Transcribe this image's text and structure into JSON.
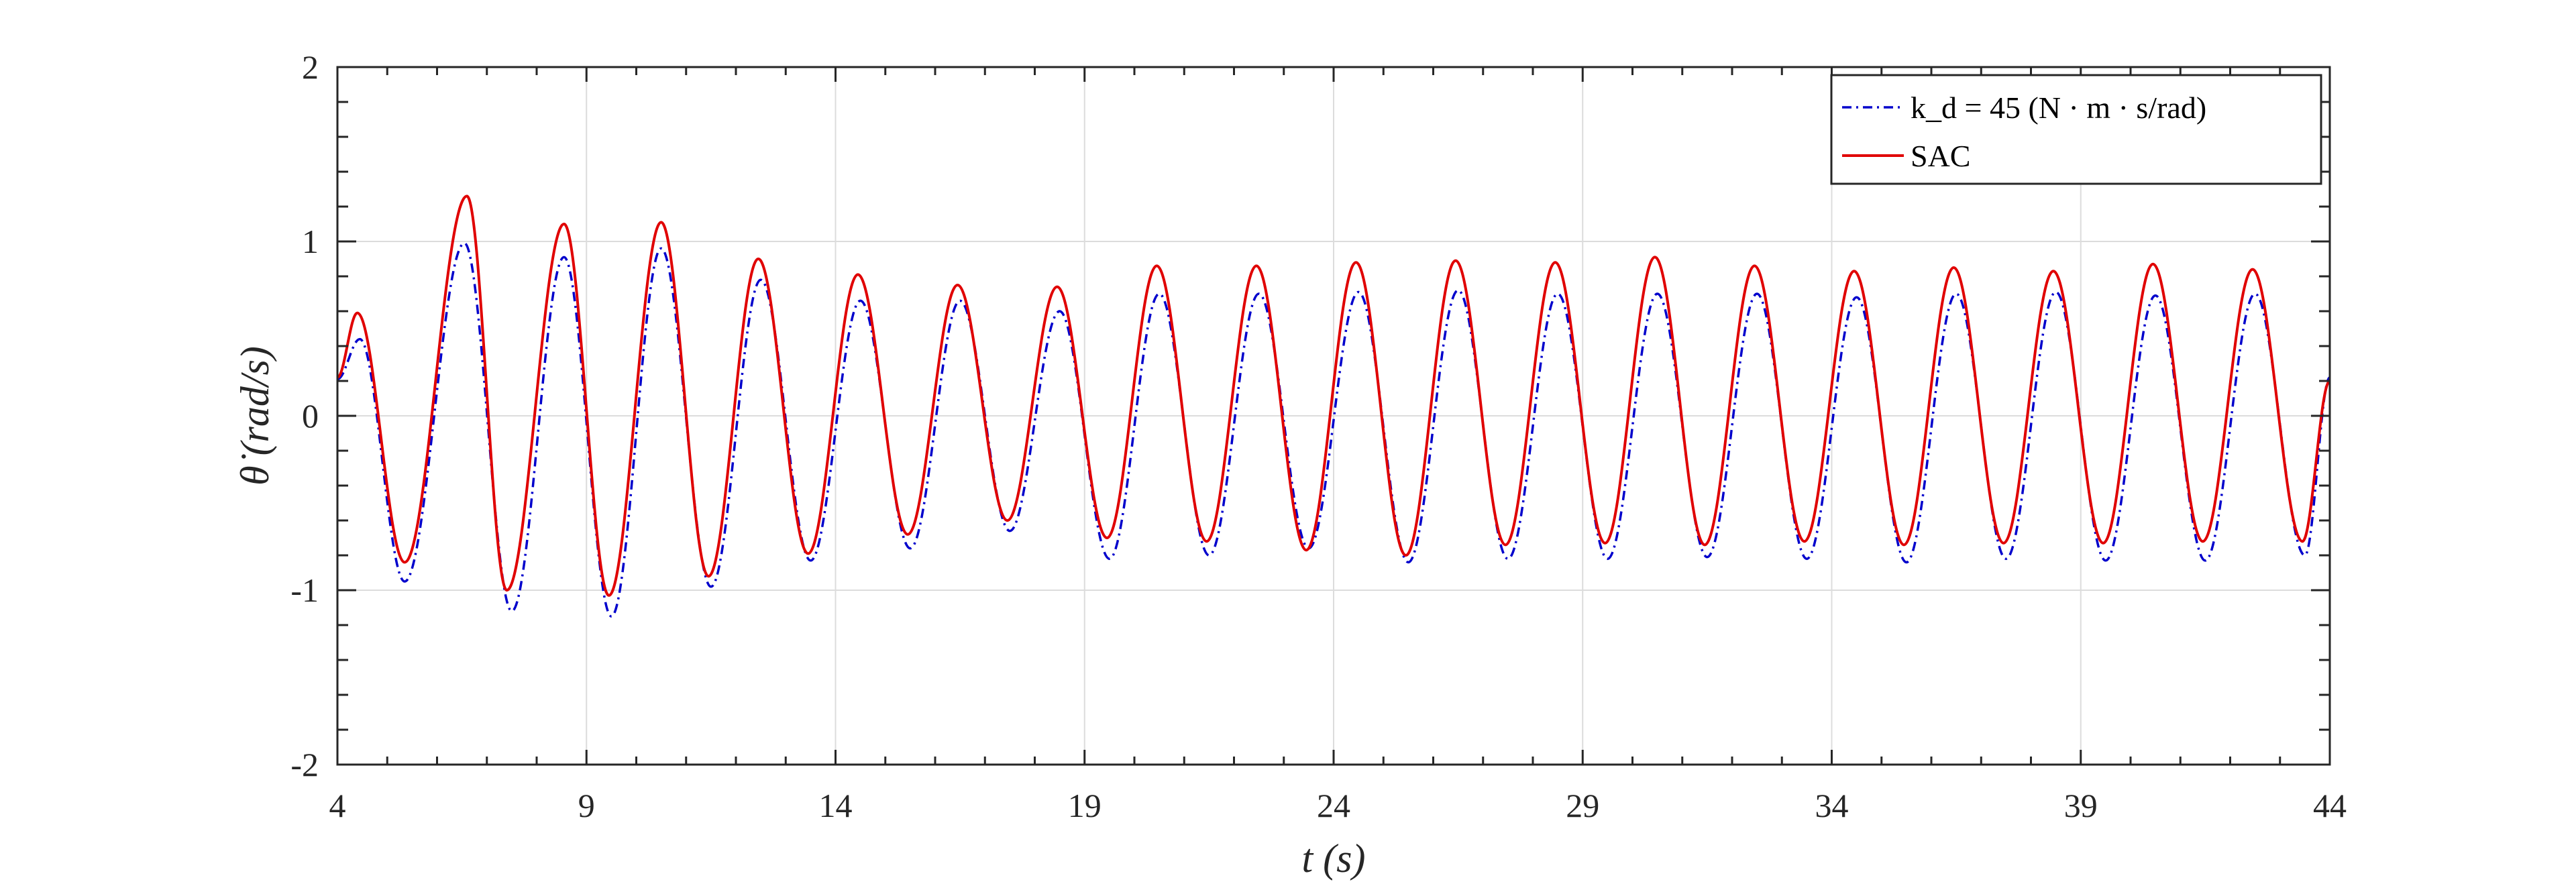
{
  "chart_data": {
    "type": "line",
    "xlabel": "t (s)",
    "ylabel": "θ̇ (rad/s)",
    "xlim": [
      4,
      44
    ],
    "ylim": [
      -2,
      2
    ],
    "xticks": [
      "4",
      "9",
      "14",
      "19",
      "24",
      "29",
      "34",
      "39",
      "44"
    ],
    "yticks": [
      "-2",
      "-1",
      "0",
      "1",
      "2"
    ],
    "grid": true,
    "legend_position": "top-right",
    "series": [
      {
        "name": "k_d = 45 (N · m · s/rad)",
        "color": "#0000cc",
        "style": "dash-dot",
        "peaks": [
          [
            4.45,
            0.44
          ],
          [
            6.55,
            0.99
          ],
          [
            8.55,
            0.91
          ],
          [
            10.5,
            0.96
          ],
          [
            12.5,
            0.78
          ],
          [
            14.5,
            0.66
          ],
          [
            16.5,
            0.66
          ],
          [
            18.5,
            0.6
          ],
          [
            20.5,
            0.7
          ],
          [
            22.5,
            0.7
          ],
          [
            24.5,
            0.71
          ],
          [
            26.5,
            0.72
          ],
          [
            28.5,
            0.7
          ],
          [
            30.5,
            0.7
          ],
          [
            32.5,
            0.7
          ],
          [
            34.5,
            0.68
          ],
          [
            36.5,
            0.7
          ],
          [
            38.5,
            0.71
          ],
          [
            40.5,
            0.69
          ],
          [
            42.5,
            0.7
          ]
        ],
        "troughs": [
          [
            5.35,
            -0.95
          ],
          [
            7.5,
            -1.12
          ],
          [
            9.5,
            -1.15
          ],
          [
            11.5,
            -0.98
          ],
          [
            13.5,
            -0.83
          ],
          [
            15.5,
            -0.76
          ],
          [
            17.5,
            -0.66
          ],
          [
            19.5,
            -0.82
          ],
          [
            21.5,
            -0.8
          ],
          [
            23.5,
            -0.76
          ],
          [
            25.5,
            -0.84
          ],
          [
            27.5,
            -0.82
          ],
          [
            29.5,
            -0.82
          ],
          [
            31.5,
            -0.81
          ],
          [
            33.5,
            -0.82
          ],
          [
            35.5,
            -0.84
          ],
          [
            37.5,
            -0.82
          ],
          [
            39.5,
            -0.83
          ],
          [
            41.5,
            -0.83
          ],
          [
            43.5,
            -0.8
          ]
        ]
      },
      {
        "name": "SAC",
        "color": "#e00000",
        "style": "solid",
        "peaks": [
          [
            4.4,
            0.59
          ],
          [
            6.6,
            1.26
          ],
          [
            8.55,
            1.1
          ],
          [
            10.5,
            1.11
          ],
          [
            12.45,
            0.9
          ],
          [
            14.45,
            0.81
          ],
          [
            16.45,
            0.75
          ],
          [
            18.45,
            0.74
          ],
          [
            20.45,
            0.86
          ],
          [
            22.45,
            0.86
          ],
          [
            24.45,
            0.88
          ],
          [
            26.45,
            0.89
          ],
          [
            28.45,
            0.88
          ],
          [
            30.45,
            0.91
          ],
          [
            32.45,
            0.86
          ],
          [
            34.45,
            0.83
          ],
          [
            36.45,
            0.85
          ],
          [
            38.45,
            0.83
          ],
          [
            40.45,
            0.87
          ],
          [
            42.45,
            0.84
          ]
        ],
        "troughs": [
          [
            5.35,
            -0.84
          ],
          [
            7.4,
            -1.0
          ],
          [
            9.45,
            -1.03
          ],
          [
            11.45,
            -0.92
          ],
          [
            13.45,
            -0.79
          ],
          [
            15.45,
            -0.68
          ],
          [
            17.45,
            -0.6
          ],
          [
            19.45,
            -0.7
          ],
          [
            21.45,
            -0.72
          ],
          [
            23.45,
            -0.77
          ],
          [
            25.45,
            -0.8
          ],
          [
            27.45,
            -0.74
          ],
          [
            29.45,
            -0.73
          ],
          [
            31.45,
            -0.74
          ],
          [
            33.45,
            -0.72
          ],
          [
            35.45,
            -0.74
          ],
          [
            37.45,
            -0.73
          ],
          [
            39.45,
            -0.73
          ],
          [
            41.45,
            -0.72
          ],
          [
            43.45,
            -0.72
          ]
        ]
      }
    ],
    "start_values": [
      0.21,
      0.22
    ],
    "end_values": [
      0.22,
      0.2
    ],
    "legend": [
      {
        "text": "k_d = 45 (N · m · s/rad)"
      },
      {
        "text": "SAC"
      }
    ]
  }
}
